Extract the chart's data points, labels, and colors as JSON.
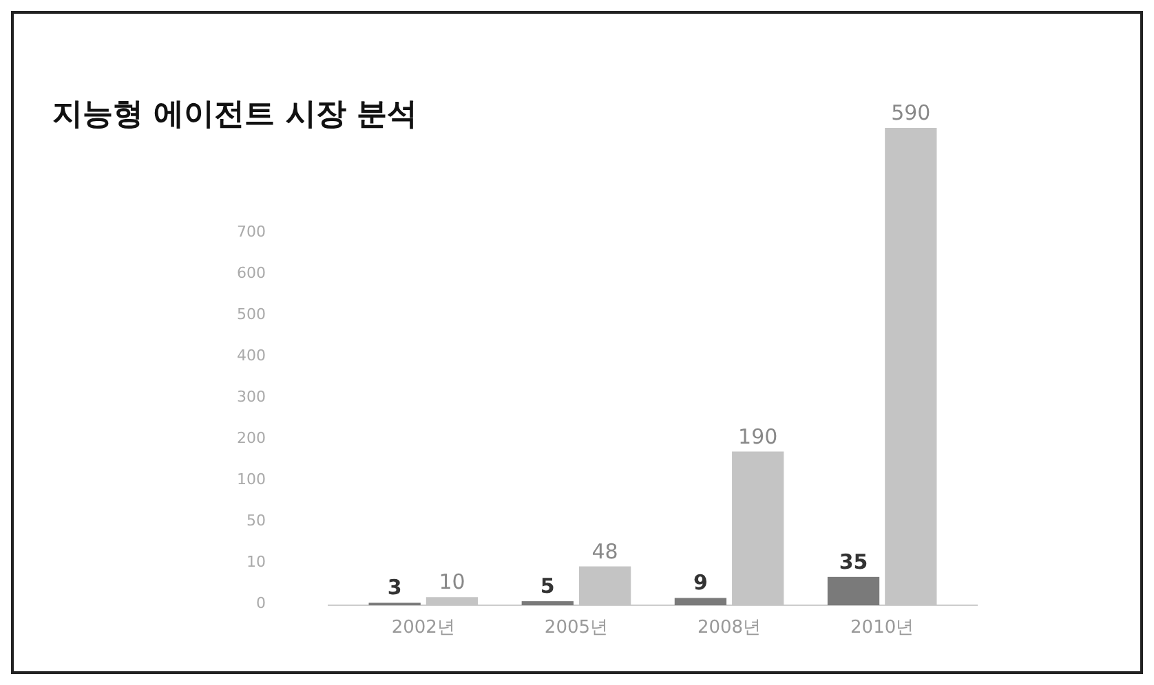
{
  "chart_data": {
    "type": "bar",
    "title": "지능형 에이전트 시장 분석",
    "categories": [
      "2002년",
      "2005년",
      "2008년",
      "2010년"
    ],
    "series": [
      {
        "color": "#7a7a7a",
        "values": [
          3,
          5,
          9,
          35
        ]
      },
      {
        "color": "#c4c4c4",
        "values": [
          10,
          48,
          190,
          590
        ]
      }
    ],
    "annotations": [
      "700",
      "600",
      "500",
      "400",
      "300",
      "200",
      "100",
      "50",
      "10",
      "0"
    ],
    "data_labels": true,
    "legend": false
  }
}
